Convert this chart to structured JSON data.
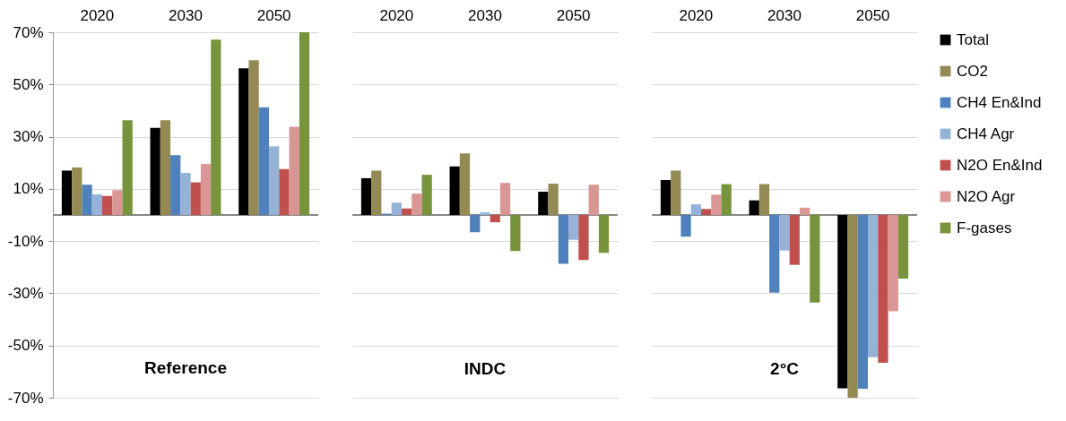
{
  "chart_data": [
    {
      "type": "bar",
      "title": "Reference",
      "categories": [
        "2020",
        "2030",
        "2050"
      ],
      "series": [
        {
          "name": "Total",
          "color": "#000000",
          "values": [
            17,
            33.4,
            56.2
          ]
        },
        {
          "name": "CO2",
          "color": "#948a54",
          "values": [
            18.2,
            36.3,
            59.3
          ]
        },
        {
          "name": "CH4 En&Ind",
          "color": "#4f81bd",
          "values": [
            11.6,
            22.9,
            41.3
          ]
        },
        {
          "name": "CH4 Agr",
          "color": "#95b3d7",
          "values": [
            7.9,
            16.1,
            26.3
          ]
        },
        {
          "name": "N2O En&Ind",
          "color": "#c0504d",
          "values": [
            7.3,
            12.5,
            17.6
          ]
        },
        {
          "name": "N2O Agr",
          "color": "#d99694",
          "values": [
            9.5,
            19.5,
            33.8
          ]
        },
        {
          "name": "F-gases",
          "color": "#77933c",
          "values": [
            36.3,
            67.2,
            70
          ]
        }
      ],
      "ylim": [
        -70,
        70
      ],
      "yticks": [
        {
          "value": -70,
          "label": "-70%"
        },
        {
          "value": -50,
          "label": "-50%"
        },
        {
          "value": -30,
          "label": "-30%"
        },
        {
          "value": -10,
          "label": "-10%"
        },
        {
          "value": 10,
          "label": "10%"
        },
        {
          "value": 30,
          "label": "30%"
        },
        {
          "value": 50,
          "label": "50%"
        },
        {
          "value": 70,
          "label": "70%"
        }
      ],
      "grid": "y",
      "legend": "right"
    },
    {
      "type": "bar",
      "title": "INDC",
      "categories": [
        "2020",
        "2030",
        "2050"
      ],
      "series": [
        {
          "name": "Total",
          "color": "#000000",
          "values": [
            14.1,
            18.6,
            8.9
          ]
        },
        {
          "name": "CO2",
          "color": "#948a54",
          "values": [
            17,
            23.6,
            12
          ]
        },
        {
          "name": "CH4 En&Ind",
          "color": "#4f81bd",
          "values": [
            0.5,
            -6.6,
            -18.7
          ]
        },
        {
          "name": "CH4 Agr",
          "color": "#95b3d7",
          "values": [
            4.7,
            1,
            -9.5
          ]
        },
        {
          "name": "N2O En&Ind",
          "color": "#c0504d",
          "values": [
            2.5,
            -2.8,
            -17.2
          ]
        },
        {
          "name": "N2O Agr",
          "color": "#d99694",
          "values": [
            8.2,
            12.3,
            11.6
          ]
        },
        {
          "name": "F-gases",
          "color": "#77933c",
          "values": [
            15.4,
            -13.8,
            -14.5
          ]
        }
      ],
      "ylim": [
        -70,
        70
      ],
      "yticks": [
        -70,
        -50,
        -30,
        -10,
        10,
        30,
        50,
        70
      ],
      "grid": "y",
      "legend": "right",
      "tick_labels": "x"
    },
    {
      "type": "bar",
      "title": "2°C",
      "categories": [
        "2020",
        "2030",
        "2050"
      ],
      "series": [
        {
          "name": "Total",
          "color": "#000000",
          "values": [
            13.4,
            5.6,
            -66.4
          ]
        },
        {
          "name": "CO2",
          "color": "#948a54",
          "values": [
            17,
            11.8,
            -70
          ]
        },
        {
          "name": "CH4 En&Ind",
          "color": "#4f81bd",
          "values": [
            -8.3,
            -29.8,
            -66.6
          ]
        },
        {
          "name": "CH4 Agr",
          "color": "#95b3d7",
          "values": [
            4.1,
            -13.6,
            -54.5
          ]
        },
        {
          "name": "N2O En&Ind",
          "color": "#c0504d",
          "values": [
            2.3,
            -19.1,
            -56.6
          ]
        },
        {
          "name": "N2O Agr",
          "color": "#d99694",
          "values": [
            7.8,
            2.8,
            -36.9
          ]
        },
        {
          "name": "F-gases",
          "color": "#77933c",
          "values": [
            11.8,
            -33.5,
            -24.4
          ]
        }
      ],
      "ylim": [
        -70,
        70
      ],
      "yticks": [
        -70,
        -50,
        -30,
        -10,
        10,
        30,
        50,
        70
      ],
      "grid": "y",
      "legend": "right",
      "tick_labels": "x"
    }
  ]
}
